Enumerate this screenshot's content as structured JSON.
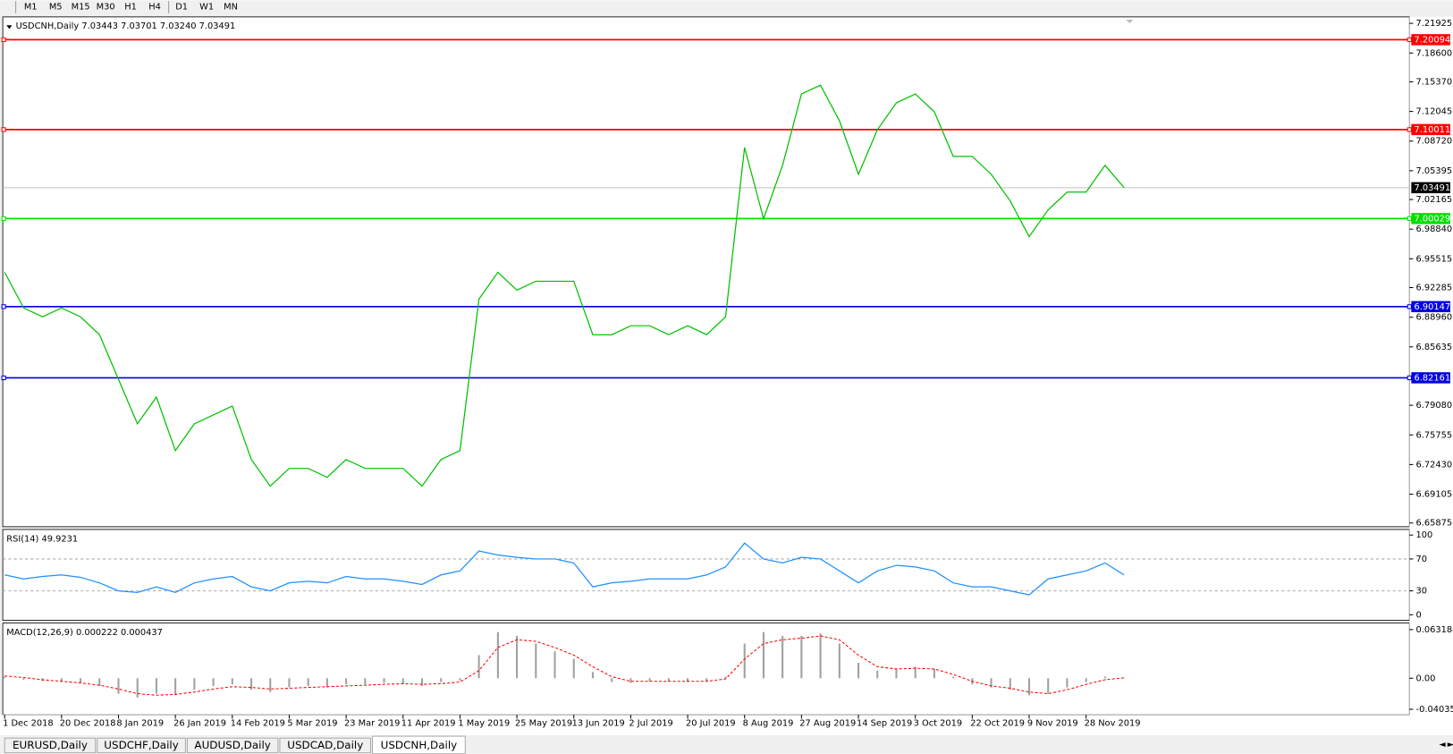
{
  "toolbar": {
    "timeframes": [
      "M1",
      "M5",
      "M15",
      "M30",
      "H1",
      "H4",
      "D1",
      "W1",
      "MN"
    ]
  },
  "tabs": [
    "EURUSD,Daily",
    "USDCHF,Daily",
    "AUDUSD,Daily",
    "USDCAD,Daily",
    "USDCNH,Daily"
  ],
  "active_tab": 4,
  "chart_data": [
    {
      "type": "line",
      "title": "USDCNH,Daily 7.03443 7.03701 7.03240 7.03491",
      "categories": [
        "1 Dec 2018",
        null,
        null,
        "20 Dec 2018",
        null,
        null,
        "8 Jan 2019",
        null,
        null,
        "26 Jan 2019",
        null,
        null,
        "14 Feb 2019",
        null,
        null,
        "5 Mar 2019",
        null,
        null,
        "23 Mar 2019",
        null,
        null,
        "11 Apr 2019",
        null,
        null,
        "1 May 2019",
        null,
        null,
        "25 May 2019",
        null,
        null,
        "13 Jun 2019",
        null,
        null,
        "2 Jul 2019",
        null,
        null,
        "20 Jul 2019",
        null,
        null,
        "8 Aug 2019",
        null,
        null,
        "27 Aug 2019",
        null,
        null,
        "14 Sep 2019",
        null,
        null,
        "3 Oct 2019",
        null,
        null,
        "22 Oct 2019",
        null,
        null,
        "9 Nov 2019",
        null,
        null,
        "28 Nov 2019",
        null,
        null
      ],
      "series": [
        {
          "color": "#00c000",
          "values": [
            6.94,
            6.9,
            6.89,
            6.9,
            6.89,
            6.87,
            6.82,
            6.77,
            6.8,
            6.74,
            6.77,
            6.78,
            6.79,
            6.73,
            6.7,
            6.72,
            6.72,
            6.71,
            6.73,
            6.72,
            6.72,
            6.72,
            6.7,
            6.73,
            6.74,
            6.91,
            6.94,
            6.92,
            6.93,
            6.93,
            6.93,
            6.87,
            6.87,
            6.88,
            6.88,
            6.87,
            6.88,
            6.87,
            6.89,
            7.08,
            7.0,
            7.06,
            7.14,
            7.15,
            7.11,
            7.05,
            7.1,
            7.13,
            7.14,
            7.12,
            7.07,
            7.07,
            7.05,
            7.02,
            6.98,
            7.01,
            7.03,
            7.03,
            7.06,
            7.035
          ]
        }
      ],
      "ylim": [
        6.65875,
        7.21925
      ],
      "yticks": [
        7.21925,
        {
          "value": 7.186,
          "label": "7.18600"
        },
        {
          "value": 7.1537,
          "label": "7.15370"
        },
        7.12045,
        {
          "value": 7.0872,
          "label": "7.08720"
        },
        7.05395,
        7.02165,
        {
          "value": 6.9884,
          "label": "6.98840"
        },
        6.95515,
        6.92285,
        {
          "value": 6.8896,
          "label": "6.88960"
        },
        6.85635,
        {
          "value": 6.7908,
          "label": "6.79080"
        },
        6.75755,
        {
          "value": 6.7243,
          "label": "6.72430"
        },
        6.69105,
        6.65875
      ],
      "levels": [
        {
          "value": 7.20094,
          "color": "#ff0000"
        },
        {
          "value": 7.10011,
          "color": "#ff0000"
        },
        {
          "value": 7.00029,
          "color": "#00e000"
        },
        {
          "value": 6.90147,
          "color": "#0000e0"
        },
        {
          "value": 6.82161,
          "color": "#0000e0"
        }
      ],
      "current": 7.03491
    },
    {
      "type": "line",
      "title": "RSI(14) 49.9231",
      "series": [
        {
          "color": "#1e90ff",
          "values": [
            50,
            45,
            48,
            50,
            47,
            40,
            30,
            28,
            35,
            28,
            40,
            45,
            48,
            35,
            30,
            40,
            42,
            40,
            48,
            45,
            45,
            42,
            38,
            50,
            55,
            80,
            75,
            72,
            70,
            70,
            65,
            35,
            40,
            42,
            45,
            45,
            45,
            50,
            60,
            90,
            70,
            65,
            72,
            70,
            55,
            40,
            55,
            62,
            60,
            55,
            40,
            35,
            35,
            30,
            25,
            45,
            50,
            55,
            65,
            50
          ]
        }
      ],
      "ylim": [
        0,
        100
      ],
      "yticks": [
        0,
        30,
        70,
        100
      ],
      "grid": true
    },
    {
      "type": "macd",
      "title": "MACD(12,26,9) 0.000222 0.000437",
      "series": [
        {
          "color": "#a0a0a0",
          "style": "histogram",
          "values": [
            0.002,
            -0.002,
            -0.004,
            -0.005,
            -0.006,
            -0.01,
            -0.02,
            -0.025,
            -0.02,
            -0.022,
            -0.015,
            -0.01,
            -0.008,
            -0.015,
            -0.018,
            -0.012,
            -0.01,
            -0.012,
            -0.008,
            -0.008,
            -0.006,
            -0.007,
            -0.01,
            -0.005,
            -0.003,
            0.03,
            0.06,
            0.055,
            0.045,
            0.035,
            0.025,
            0.008,
            -0.005,
            -0.006,
            -0.004,
            -0.004,
            -0.005,
            -0.004,
            0.002,
            0.045,
            0.06,
            0.055,
            0.055,
            0.058,
            0.045,
            0.02,
            0.01,
            0.012,
            0.015,
            0.012,
            0.002,
            -0.008,
            -0.012,
            -0.015,
            -0.022,
            -0.02,
            -0.012,
            -0.005,
            0.002,
            0.0002
          ]
        },
        {
          "color": "#ff0000",
          "style": "dashed",
          "values": [
            0.003,
            0.001,
            -0.002,
            -0.004,
            -0.006,
            -0.009,
            -0.014,
            -0.02,
            -0.022,
            -0.021,
            -0.018,
            -0.014,
            -0.011,
            -0.012,
            -0.014,
            -0.013,
            -0.012,
            -0.011,
            -0.01,
            -0.009,
            -0.008,
            -0.007,
            -0.008,
            -0.007,
            -0.005,
            0.01,
            0.04,
            0.05,
            0.048,
            0.04,
            0.03,
            0.015,
            0.002,
            -0.004,
            -0.004,
            -0.004,
            -0.004,
            -0.004,
            -0.001,
            0.025,
            0.045,
            0.05,
            0.052,
            0.055,
            0.05,
            0.03,
            0.015,
            0.012,
            0.013,
            0.012,
            0.005,
            -0.004,
            -0.01,
            -0.013,
            -0.018,
            -0.02,
            -0.015,
            -0.008,
            -0.002,
            0.0004
          ]
        }
      ],
      "ylim": [
        -0.040355,
        0.063184
      ],
      "yticks": [
        -0.040355,
        {
          "value": 0,
          "label": "0.00"
        },
        0.063184
      ]
    }
  ]
}
